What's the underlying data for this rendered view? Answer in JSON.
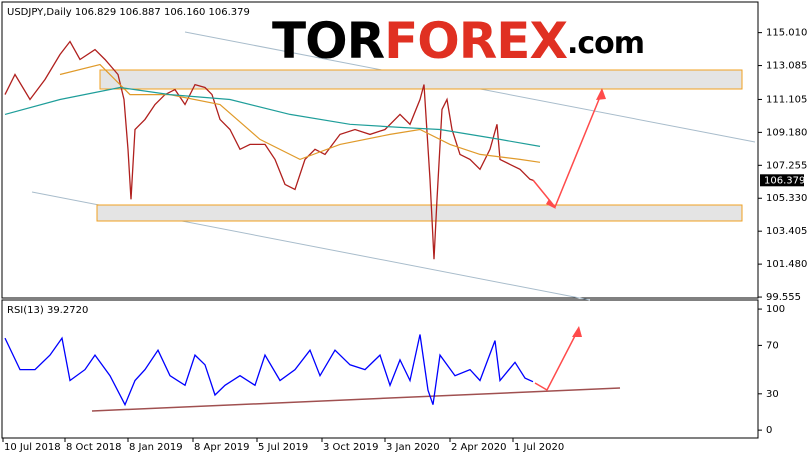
{
  "logo": {
    "part1": "TOR",
    "part2": "FOREX",
    "part3": ".com"
  },
  "chart_data": [
    {
      "type": "line",
      "title": "USDJPY,Daily 106.829 106.887 106.160 106.379",
      "last_price": 106.379,
      "xlim": [
        0,
        756
      ],
      "ylim": [
        99.5,
        116.8
      ],
      "yticks": [
        {
          "value": 115.01,
          "label": "115.010"
        },
        113.085,
        111.105,
        {
          "value": 109.18,
          "label": "109.180"
        },
        107.255,
        {
          "value": 105.33,
          "label": "105.330"
        },
        103.405,
        {
          "value": 101.48,
          "label": "101.480"
        },
        99.555
      ],
      "series": [
        {
          "color": "#b0201e",
          "x": [
            3,
            13,
            28,
            43,
            58,
            68,
            78,
            93,
            103,
            116,
            122,
            126,
            129,
            133,
            143,
            153,
            163,
            173,
            183,
            193,
            203,
            210,
            218,
            228,
            238,
            248,
            263,
            273,
            283,
            293,
            303,
            313,
            323,
            338,
            353,
            368,
            383,
            398,
            408,
            418,
            422,
            428,
            432,
            435,
            440,
            445,
            450,
            458,
            468,
            478,
            488,
            495,
            498,
            508,
            518,
            528,
            531
          ],
          "values": [
            111.39,
            112.56,
            111.1,
            112.27,
            113.73,
            114.49,
            113.44,
            114.02,
            113.44,
            112.56,
            111.1,
            108.19,
            105.27,
            109.35,
            109.94,
            110.81,
            111.39,
            111.68,
            110.81,
            111.97,
            111.8,
            111.39,
            109.94,
            109.35,
            108.19,
            108.48,
            108.48,
            107.6,
            106.14,
            105.85,
            107.6,
            108.19,
            107.89,
            109.06,
            109.35,
            109.06,
            109.35,
            110.23,
            109.65,
            111.1,
            111.97,
            106.44,
            101.77,
            105.27,
            110.52,
            111.1,
            109.35,
            107.89,
            107.6,
            107.02,
            108.19,
            109.65,
            107.6,
            107.31,
            107.02,
            106.44,
            106.38
          ]
        },
        {
          "color": "#e09a2a",
          "x": [
            58,
            98,
            128,
            168,
            218,
            258,
            298,
            338,
            388,
            418,
            448,
            478,
            518,
            538
          ],
          "values": [
            112.56,
            113.14,
            111.39,
            111.39,
            110.81,
            108.77,
            107.6,
            108.48,
            109.06,
            109.35,
            108.48,
            107.89,
            107.6,
            107.43
          ]
        },
        {
          "color": "#1f9e9a",
          "x": [
            3,
            58,
            118,
            168,
            228,
            288,
            348,
            398,
            438,
            498,
            538
          ],
          "values": [
            110.23,
            111.1,
            111.8,
            111.39,
            111.1,
            110.23,
            109.65,
            109.47,
            109.35,
            108.77,
            108.36
          ]
        }
      ]
    },
    {
      "type": "line",
      "title": "RSI(13) 39.2720",
      "xlim": [
        0,
        756
      ],
      "ylim": [
        -6.5,
        107.5
      ],
      "yticks": [
        100,
        70,
        30,
        0
      ],
      "xticks": [
        {
          "value": 1,
          "label": "10 Jul 2018"
        },
        {
          "value": 63,
          "label": "8 Oct 2018"
        },
        {
          "value": 126,
          "label": "8 Jan 2019"
        },
        {
          "value": 191,
          "label": "8 Apr 2019"
        },
        {
          "value": 255,
          "label": "5 Jul 2019"
        },
        {
          "value": 320,
          "label": "3 Oct 2019"
        },
        {
          "value": 383,
          "label": "3 Jan 2020"
        },
        {
          "value": 448,
          "label": "2 Apr 2020"
        },
        {
          "value": 511,
          "label": "1 Jul 2020"
        }
      ],
      "series": [
        {
          "color": "#0000ff",
          "x": [
            3,
            18,
            33,
            48,
            60,
            68,
            83,
            93,
            108,
            123,
            133,
            143,
            156,
            168,
            183,
            193,
            203,
            213,
            223,
            238,
            253,
            263,
            278,
            293,
            308,
            318,
            333,
            348,
            363,
            378,
            388,
            398,
            408,
            418,
            426,
            431,
            438,
            453,
            468,
            478,
            493,
            498,
            513,
            523,
            531
          ],
          "values": [
            76,
            50,
            50,
            62,
            76,
            41,
            50,
            62,
            45,
            21,
            41,
            50,
            66,
            45,
            37,
            62,
            54,
            29,
            37,
            45,
            37,
            62,
            41,
            50,
            66,
            45,
            66,
            54,
            50,
            62,
            37,
            58,
            41,
            79,
            33,
            21,
            62,
            45,
            50,
            41,
            74,
            41,
            56,
            43,
            40
          ]
        }
      ]
    }
  ]
}
